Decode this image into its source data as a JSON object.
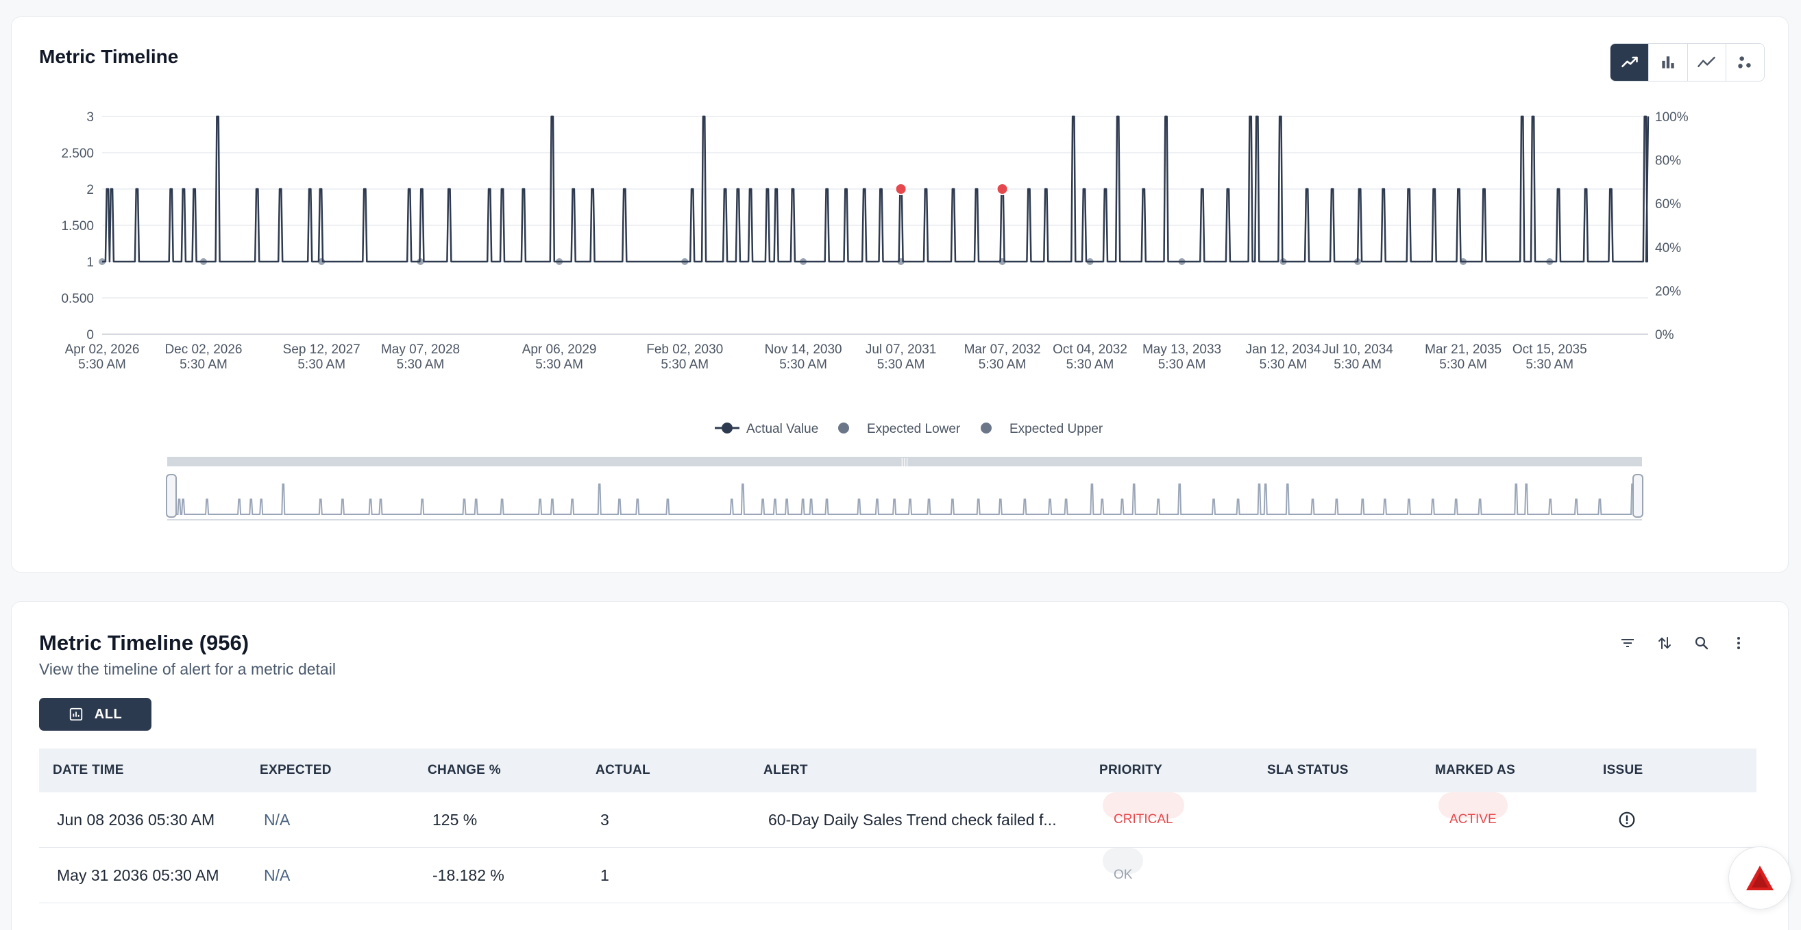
{
  "timeline_card": {
    "title": "Metric Timeline",
    "view_toggles": [
      {
        "name": "line-chart",
        "active": true
      },
      {
        "name": "bar-chart",
        "active": false
      },
      {
        "name": "trend-chart",
        "active": false
      },
      {
        "name": "scatter-chart",
        "active": false
      }
    ]
  },
  "chart_data": {
    "type": "line",
    "title": "",
    "y_left_ticks": [
      "3",
      "2.500",
      "2",
      "1.500",
      "1",
      "0.500",
      "0"
    ],
    "ylim": [
      0,
      3
    ],
    "y_right_ticks": [
      "100%",
      "80%",
      "60%",
      "40%",
      "20%",
      "0%"
    ],
    "x_ticks": [
      [
        "Apr 02, 2026",
        "5:30 AM"
      ],
      [
        "Dec 02, 2026",
        "5:30 AM"
      ],
      [
        "Sep 12, 2027",
        "5:30 AM"
      ],
      [
        "May 07, 2028",
        "5:30 AM"
      ],
      [
        "Apr 06, 2029",
        "5:30 AM"
      ],
      [
        "Feb 02, 2030",
        "5:30 AM"
      ],
      [
        "Nov 14, 2030",
        "5:30 AM"
      ],
      [
        "Jul 07, 2031",
        "5:30 AM"
      ],
      [
        "Mar 07, 2032",
        "5:30 AM"
      ],
      [
        "Oct 04, 2032",
        "5:30 AM"
      ],
      [
        "May 13, 2033",
        "5:30 AM"
      ],
      [
        "Jan 12, 2034",
        "5:30 AM"
      ],
      [
        "Jul 10, 2034",
        "5:30 AM"
      ],
      [
        "Mar 21, 2035",
        "5:30 AM"
      ],
      [
        "Oct 15, 2035",
        "5:30 AM"
      ]
    ],
    "x_range": [
      "Apr 02, 2026",
      "Jun 08, 2036"
    ],
    "baseline": 1,
    "spikes": [
      [
        "2026-04-15",
        2
      ],
      [
        "2026-04-25",
        2
      ],
      [
        "2026-06-25",
        2
      ],
      [
        "2026-09-15",
        2
      ],
      [
        "2026-10-15",
        2
      ],
      [
        "2026-11-10",
        2
      ],
      [
        "2027-01-05",
        3
      ],
      [
        "2027-04-10",
        2
      ],
      [
        "2027-06-05",
        2
      ],
      [
        "2027-08-15",
        2
      ],
      [
        "2027-09-10",
        2
      ],
      [
        "2027-12-25",
        2
      ],
      [
        "2028-04-10",
        2
      ],
      [
        "2028-05-10",
        2
      ],
      [
        "2028-07-15",
        2
      ],
      [
        "2028-10-20",
        2
      ],
      [
        "2028-11-20",
        2
      ],
      [
        "2029-01-10",
        2
      ],
      [
        "2029-03-20",
        3
      ],
      [
        "2029-05-10",
        2
      ],
      [
        "2029-06-25",
        2
      ],
      [
        "2029-09-10",
        2
      ],
      [
        "2030-02-20",
        2
      ],
      [
        "2030-03-20",
        3
      ],
      [
        "2030-05-10",
        2
      ],
      [
        "2030-06-10",
        2
      ],
      [
        "2030-07-10",
        2
      ],
      [
        "2030-08-20",
        2
      ],
      [
        "2030-09-10",
        2
      ],
      [
        "2030-10-20",
        2
      ],
      [
        "2031-01-10",
        2
      ],
      [
        "2031-02-25",
        2
      ],
      [
        "2031-04-10",
        2
      ],
      [
        "2031-05-20",
        2
      ],
      [
        "2031-07-07",
        2
      ],
      [
        "2031-09-05",
        2
      ],
      [
        "2031-11-10",
        2
      ],
      [
        "2032-01-05",
        2
      ],
      [
        "2032-03-07",
        2
      ],
      [
        "2032-05-10",
        2
      ],
      [
        "2032-06-20",
        2
      ],
      [
        "2032-08-25",
        3
      ],
      [
        "2032-09-20",
        2
      ],
      [
        "2032-11-10",
        2
      ],
      [
        "2032-12-10",
        3
      ],
      [
        "2033-02-10",
        2
      ],
      [
        "2033-04-05",
        3
      ],
      [
        "2033-07-01",
        2
      ],
      [
        "2033-09-01",
        2
      ],
      [
        "2033-10-25",
        3
      ],
      [
        "2033-11-10",
        3
      ],
      [
        "2034-01-05",
        3
      ],
      [
        "2034-03-10",
        2
      ],
      [
        "2034-05-10",
        2
      ],
      [
        "2034-07-15",
        2
      ],
      [
        "2034-09-10",
        2
      ],
      [
        "2034-11-10",
        2
      ],
      [
        "2035-01-10",
        2
      ],
      [
        "2035-03-10",
        2
      ],
      [
        "2035-05-10",
        2
      ],
      [
        "2035-08-10",
        3
      ],
      [
        "2035-09-05",
        3
      ],
      [
        "2035-11-05",
        2
      ],
      [
        "2036-01-10",
        2
      ],
      [
        "2036-03-10",
        2
      ],
      [
        "2036-06-01",
        3
      ]
    ],
    "highlighted_points": [
      [
        "2031-07-07",
        2
      ],
      [
        "2032-03-07",
        2
      ]
    ],
    "legend": [
      "Actual Value",
      "Expected Lower",
      "Expected Upper"
    ],
    "colors": {
      "actual": "#2e3a4f",
      "expected": "#6b7789",
      "anomaly": "#e5484d",
      "navigator": "#9aa6b8"
    }
  },
  "table_card": {
    "title": "Metric Timeline (956)",
    "subtitle": "View the timeline of alert for a metric detail",
    "all_button": "ALL",
    "toolbar_icons": [
      "filter-icon",
      "sort-icon",
      "search-icon",
      "more-vertical-icon"
    ],
    "columns": [
      "DATE TIME",
      "EXPECTED",
      "CHANGE %",
      "ACTUAL",
      "ALERT",
      "PRIORITY",
      "SLA STATUS",
      "MARKED AS",
      "ISSUE"
    ],
    "rows": [
      {
        "datetime": "Jun 08 2036 05:30 AM",
        "expected": "N/A",
        "change": "125 %",
        "actual": "3",
        "alert": "60-Day Daily Sales Trend check failed f...",
        "priority": "CRITICAL",
        "sla": "",
        "marked": "ACTIVE",
        "issue": "alert-circle-icon"
      },
      {
        "datetime": "May 31 2036 05:30 AM",
        "expected": "N/A",
        "change": "-18.182 %",
        "actual": "1",
        "alert": "",
        "priority": "OK",
        "sla": "",
        "marked": "",
        "issue": ""
      }
    ]
  }
}
